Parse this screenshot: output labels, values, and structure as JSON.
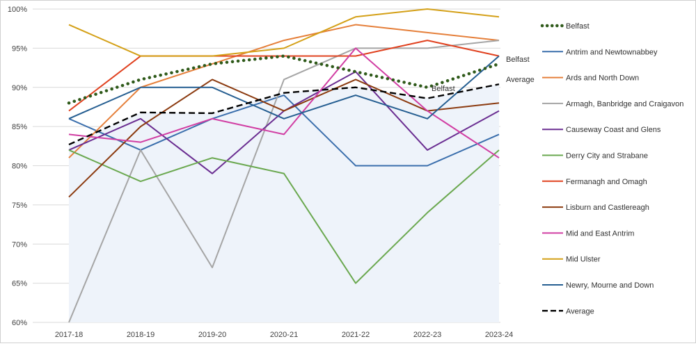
{
  "chart_data": {
    "type": "line",
    "categories": [
      "2017-18",
      "2018-19",
      "2019-20",
      "2020-21",
      "2021-22",
      "2022-23",
      "2023-24"
    ],
    "y_ticks": [
      "60%",
      "65%",
      "70%",
      "75%",
      "80%",
      "85%",
      "90%",
      "95%",
      "100%"
    ],
    "ylim": [
      60,
      100
    ],
    "grid": "horizontal",
    "legend_position": "right",
    "shaded_area": "Average",
    "shaded_color": "#eef3fa",
    "series": [
      {
        "name": "Belfast",
        "color": "#2f5a1a",
        "style": "dotted",
        "values": [
          88,
          91,
          93,
          94,
          92,
          90,
          93
        ]
      },
      {
        "name": "Antrim and Newtownabbey",
        "color": "#3a6eac",
        "style": "solid",
        "values": [
          86,
          82,
          86,
          89,
          80,
          80,
          84
        ]
      },
      {
        "name": "Ards and North Down",
        "color": "#e57f3a",
        "style": "solid",
        "values": [
          81,
          90,
          93,
          96,
          98,
          97,
          96
        ]
      },
      {
        "name": "Armagh, Banbridge and Craigavon",
        "color": "#a5a5a5",
        "style": "solid",
        "values": [
          60,
          82,
          67,
          91,
          95,
          95,
          96
        ]
      },
      {
        "name": "Causeway Coast and Glens",
        "color": "#6a2d91",
        "style": "solid",
        "values": [
          82,
          86,
          79,
          87,
          92,
          82,
          87
        ]
      },
      {
        "name": "Derry City and Strabane",
        "color": "#6aa84f",
        "style": "solid",
        "values": [
          82,
          78,
          81,
          79,
          65,
          74,
          82
        ]
      },
      {
        "name": "Fermanagh and Omagh",
        "color": "#e0411f",
        "style": "solid",
        "values": [
          87,
          94,
          94,
          94,
          94,
          96,
          94
        ]
      },
      {
        "name": "Lisburn and Castlereagh",
        "color": "#8b3a0f",
        "style": "solid",
        "values": [
          76,
          85,
          91,
          87,
          91,
          87,
          88
        ]
      },
      {
        "name": "Mid and East Antrim",
        "color": "#d13ea3",
        "style": "solid",
        "values": [
          84,
          83,
          86,
          84,
          95,
          87,
          81
        ]
      },
      {
        "name": "Mid Ulster",
        "color": "#d4a017",
        "style": "solid",
        "values": [
          98,
          94,
          94,
          95,
          99,
          100,
          99
        ]
      },
      {
        "name": "Newry, Mourne and Down",
        "color": "#255e91",
        "style": "solid",
        "values": [
          86,
          90,
          90,
          86,
          89,
          86,
          94
        ]
      },
      {
        "name": "Average",
        "color": "#000000",
        "style": "dashed",
        "values": [
          82.7,
          86.8,
          86.7,
          89.3,
          90.0,
          88.6,
          90.4
        ]
      }
    ],
    "annotations": [
      {
        "text": "Belfast",
        "series": "Belfast",
        "category": "2022-23",
        "value": 90
      },
      {
        "text": "Belfast",
        "series": "Belfast",
        "category": "2023-24",
        "value": 93
      },
      {
        "text": "Average",
        "series": "Average",
        "category": "2023-24",
        "value": 90.4
      }
    ]
  }
}
